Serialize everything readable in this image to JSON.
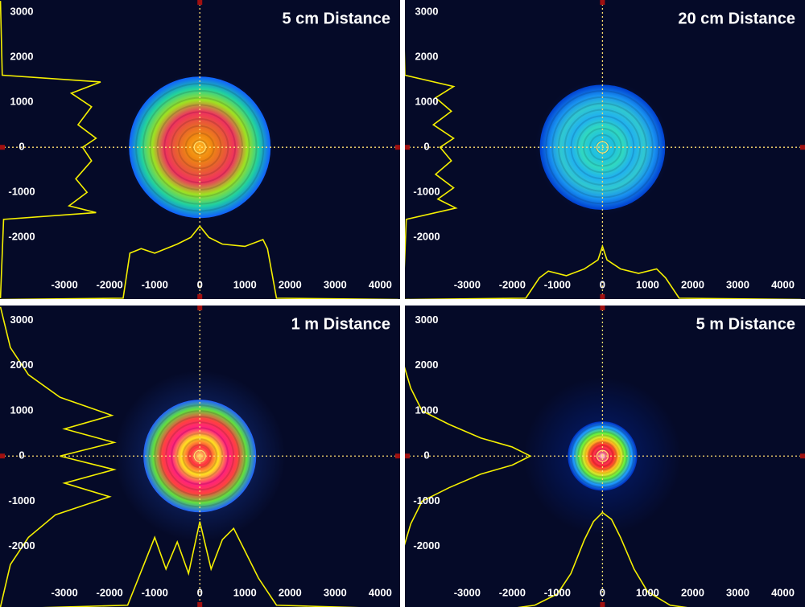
{
  "chart_data": [
    {
      "type": "beam",
      "title": "5 cm Distance",
      "xlim": [
        -4430,
        4440
      ],
      "ylim": [
        -3370,
        3270
      ],
      "xticks": [
        -3000,
        -2000,
        -1000,
        0,
        1000,
        2000,
        3000,
        4000
      ],
      "yticks": [
        3000,
        2000,
        1000,
        0,
        -1000,
        -2000
      ],
      "beam": {
        "radius": 1570,
        "halo": 1650,
        "colors": [
          "#ffb020",
          "#f08a10",
          "#e86030",
          "#f03060",
          "#a0e020",
          "#20d0a0",
          "#1060ff"
        ]
      },
      "profile_color": "#f5f000",
      "x_profile": {
        "x": [
          -4400,
          -1700,
          -1550,
          -1300,
          -1000,
          -500,
          -200,
          0,
          200,
          500,
          1000,
          1400,
          1500,
          1700,
          4400
        ],
        "values": [
          -3380,
          -3350,
          -2350,
          -2250,
          -2350,
          -2150,
          -2000,
          -1750,
          -2000,
          -2150,
          -2200,
          -2050,
          -2250,
          -3350,
          -3380
        ]
      },
      "y_profile": {
        "y": [
          3250,
          1600,
          1450,
          1200,
          900,
          500,
          200,
          0,
          -300,
          -700,
          -1000,
          -1300,
          -1450,
          -1600,
          -3350
        ],
        "values": [
          -4420,
          -4380,
          -2200,
          -2850,
          -2400,
          -2700,
          -2300,
          -2600,
          -2400,
          -2750,
          -2500,
          -2900,
          -2300,
          -4350,
          -4420
        ]
      }
    },
    {
      "type": "beam",
      "title": "20 cm Distance",
      "xlim": [
        -4380,
        4490
      ],
      "ylim": [
        -3370,
        3270
      ],
      "xticks": [
        -3000,
        -2000,
        -1000,
        0,
        1000,
        2000,
        3000,
        4000
      ],
      "yticks": [
        3000,
        2000,
        1000,
        0,
        -1000,
        -2000
      ],
      "beam": {
        "radius": 1390,
        "halo": 1500,
        "colors": [
          "#30d0d0",
          "#20c0e0",
          "#30d8c0",
          "#20b0f0",
          "#30c8d0",
          "#1890f0",
          "#0040d0"
        ]
      },
      "profile_color": "#f5f000",
      "x_profile": {
        "x": [
          -4400,
          -1700,
          -1400,
          -1200,
          -800,
          -400,
          -100,
          0,
          100,
          400,
          800,
          1200,
          1400,
          1700,
          4400
        ],
        "values": [
          -3380,
          -3350,
          -2900,
          -2750,
          -2850,
          -2700,
          -2500,
          -2200,
          -2500,
          -2700,
          -2800,
          -2700,
          -2900,
          -3350,
          -3380
        ]
      },
      "y_profile": {
        "y": [
          3250,
          1600,
          1350,
          1100,
          800,
          500,
          200,
          0,
          -300,
          -600,
          -900,
          -1150,
          -1350,
          -1600,
          -3350
        ],
        "values": [
          -4420,
          -4380,
          -3300,
          -3700,
          -3350,
          -3750,
          -3300,
          -3600,
          -3350,
          -3700,
          -3300,
          -3650,
          -3250,
          -4350,
          -4420
        ]
      }
    },
    {
      "type": "beam",
      "title": "1 m Distance",
      "xlim": [
        -4430,
        4440
      ],
      "ylim": [
        -3340,
        3330
      ],
      "xticks": [
        -3000,
        -2000,
        -1000,
        0,
        1000,
        2000,
        3000,
        4000
      ],
      "yticks": [
        3000,
        2000,
        1000,
        0,
        -1000,
        -2000
      ],
      "beam": {
        "radius": 1250,
        "halo": 1900,
        "colors": [
          "#ffe060",
          "#ff3040",
          "#ffe020",
          "#ff2080",
          "#ff4040",
          "#60e040",
          "#2060ff"
        ]
      },
      "profile_color": "#f5f000",
      "x_profile": {
        "x": [
          -4400,
          -1600,
          -1200,
          -1000,
          -750,
          -500,
          -250,
          0,
          250,
          500,
          750,
          1000,
          1300,
          1700,
          4400
        ],
        "values": [
          -3380,
          -3300,
          -2300,
          -1800,
          -2500,
          -1900,
          -2600,
          -1450,
          -2500,
          -1850,
          -1600,
          -2100,
          -2700,
          -3300,
          -3380
        ]
      },
      "y_profile": {
        "y": [
          3300,
          2400,
          1800,
          1300,
          900,
          600,
          300,
          0,
          -300,
          -600,
          -900,
          -1300,
          -1800,
          -2400,
          -3340
        ],
        "values": [
          -4420,
          -4200,
          -3800,
          -3100,
          -1950,
          -3000,
          -1900,
          -3100,
          -1900,
          -3000,
          -2000,
          -3200,
          -3800,
          -4200,
          -4420
        ]
      }
    },
    {
      "type": "beam",
      "title": "5 m Distance",
      "xlim": [
        -4380,
        4490
      ],
      "ylim": [
        -3340,
        3330
      ],
      "xticks": [
        -3000,
        -2000,
        -1000,
        0,
        1000,
        2000,
        3000,
        4000
      ],
      "yticks": [
        3000,
        2000,
        1000,
        0,
        -1000,
        -2000
      ],
      "beam": {
        "radius": 770,
        "halo": 1750,
        "colors": [
          "#ffe0e0",
          "#ff3060",
          "#ff3030",
          "#ffe020",
          "#60f040",
          "#20a0ff",
          "#0030c0"
        ]
      },
      "profile_color": "#f5f000",
      "x_profile": {
        "x": [
          -4400,
          -2000,
          -1500,
          -1000,
          -700,
          -400,
          -200,
          0,
          200,
          400,
          700,
          1000,
          1500,
          2000,
          4400
        ],
        "values": [
          -3380,
          -3370,
          -3300,
          -3050,
          -2600,
          -1850,
          -1450,
          -1250,
          -1400,
          -1800,
          -2500,
          -3000,
          -3300,
          -3370,
          -3380
        ]
      },
      "y_profile": {
        "y": [
          3300,
          2000,
          1500,
          1000,
          700,
          400,
          200,
          0,
          -200,
          -400,
          -700,
          -1000,
          -1500,
          -2000,
          -3340
        ],
        "values": [
          -4420,
          -4400,
          -4250,
          -4000,
          -3400,
          -2700,
          -2000,
          -1600,
          -2000,
          -2700,
          -3400,
          -4000,
          -4250,
          -4400,
          -4420
        ]
      }
    }
  ]
}
